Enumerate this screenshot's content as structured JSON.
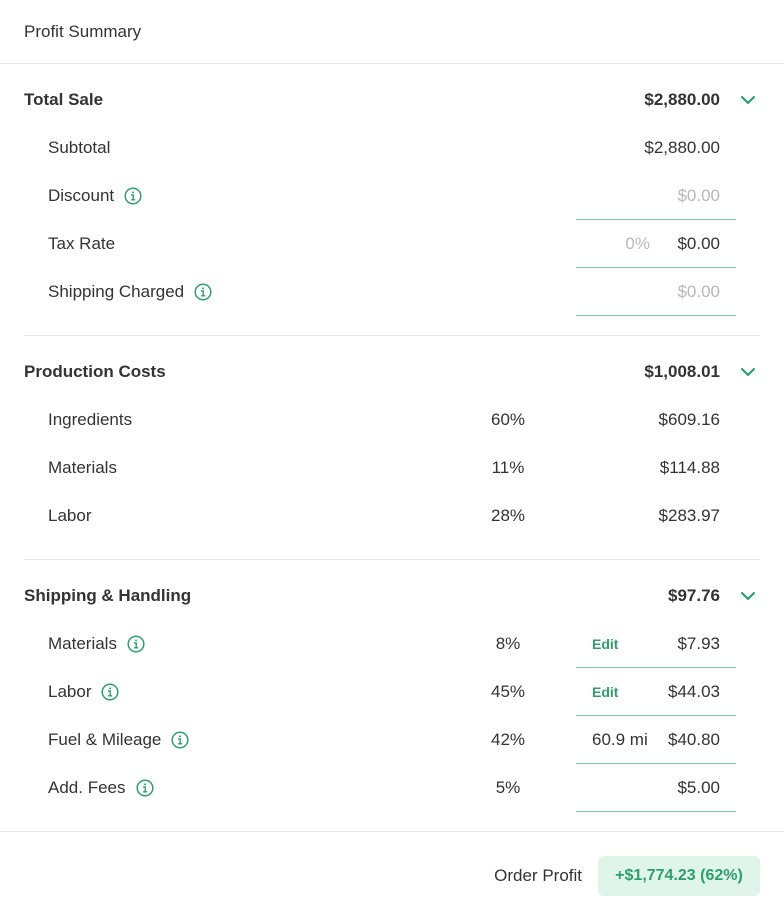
{
  "header": {
    "title": "Profit Summary"
  },
  "total_sale": {
    "label": "Total Sale",
    "amount": "$2,880.00",
    "chevron_icon": "chevron-down-icon",
    "rows": [
      {
        "label": "Subtotal",
        "amount": "$2,880.00"
      },
      {
        "label": "Discount",
        "placeholder": "$0.00",
        "info_icon": "info-icon"
      },
      {
        "label": "Tax Rate",
        "rate_placeholder": "0%",
        "amount": "$0.00"
      },
      {
        "label": "Shipping Charged",
        "placeholder": "$0.00",
        "info_icon": "info-icon"
      }
    ]
  },
  "production_costs": {
    "label": "Production Costs",
    "amount": "$1,008.01",
    "rows": [
      {
        "label": "Ingredients",
        "pct": "60%",
        "amount": "$609.16"
      },
      {
        "label": "Materials",
        "pct": "11%",
        "amount": "$114.88"
      },
      {
        "label": "Labor",
        "pct": "28%",
        "amount": "$283.97"
      }
    ]
  },
  "shipping_handling": {
    "label": "Shipping & Handling",
    "amount": "$97.76",
    "rows": [
      {
        "label": "Materials",
        "pct": "8%",
        "edit_label": "Edit",
        "amount": "$7.93"
      },
      {
        "label": "Labor",
        "pct": "45%",
        "edit_label": "Edit",
        "amount": "$44.03"
      },
      {
        "label": "Fuel & Mileage",
        "pct": "42%",
        "distance": "60.9 mi",
        "amount": "$40.80"
      },
      {
        "label": "Add. Fees",
        "pct": "5%",
        "amount": "$5.00"
      }
    ]
  },
  "footer": {
    "label": "Order Profit",
    "value": "+$1,774.23 (62%)"
  },
  "colors": {
    "accent": "#2f9e6d",
    "accent_bg": "#dff5ea",
    "field_underline": "#7cc9a4",
    "placeholder": "#b8b8b8",
    "divider": "#e6e6e6"
  }
}
